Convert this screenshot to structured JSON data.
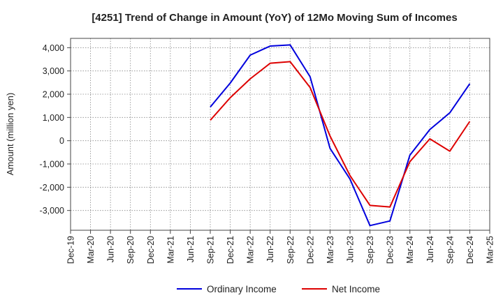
{
  "chart_data": {
    "type": "line",
    "title": "[4251]  Trend of Change in Amount (YoY) of 12Mo Moving Sum of Incomes",
    "xlabel": "",
    "ylabel": "Amount (million yen)",
    "x": [
      "Dec-19",
      "Mar-20",
      "Jun-20",
      "Sep-20",
      "Dec-20",
      "Mar-21",
      "Jun-21",
      "Sep-21",
      "Dec-21",
      "Mar-22",
      "Jun-22",
      "Sep-22",
      "Dec-22",
      "Mar-23",
      "Jun-23",
      "Sep-23",
      "Dec-23",
      "Mar-24",
      "Jun-24",
      "Sep-24",
      "Dec-24",
      "Mar-25"
    ],
    "yticks": [
      4000,
      3000,
      2000,
      1000,
      0,
      -1000,
      -2000,
      -3000
    ],
    "ytick_labels": [
      "4,000",
      "3,000",
      "2,000",
      "1,000",
      "0",
      "-1,000",
      "-2,000",
      "-3,000"
    ],
    "ylim": [
      -3850,
      4400
    ],
    "grid": true,
    "legend_position": "bottom-center",
    "series": [
      {
        "name": "Ordinary Income",
        "color": "#0000dd",
        "values": [
          null,
          null,
          null,
          null,
          null,
          null,
          null,
          1450,
          2480,
          3680,
          4070,
          4120,
          2750,
          -330,
          -1650,
          -3650,
          -3450,
          -620,
          480,
          1200,
          2450,
          null
        ]
      },
      {
        "name": "Net Income",
        "color": "#dd0000",
        "values": [
          null,
          null,
          null,
          null,
          null,
          null,
          null,
          880,
          1850,
          2660,
          3330,
          3400,
          2290,
          200,
          -1500,
          -2780,
          -2850,
          -900,
          80,
          -450,
          830,
          null
        ]
      }
    ]
  }
}
